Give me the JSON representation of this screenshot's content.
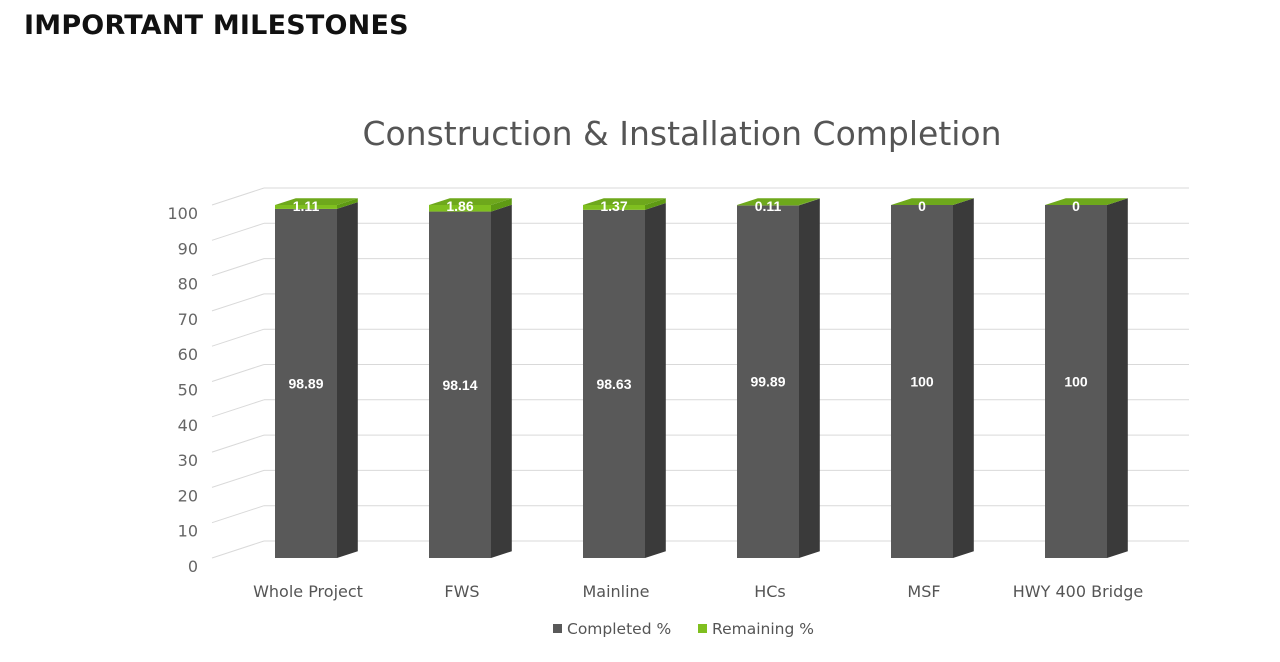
{
  "page": {
    "heading": "IMPORTANT MILESTONES"
  },
  "chart_data": {
    "type": "bar",
    "stacked": true,
    "three_d": true,
    "title": "Construction & Installation Completion",
    "categories": [
      "Whole Project",
      "FWS",
      "Mainline",
      "HCs",
      "MSF",
      "HWY 400 Bridge"
    ],
    "series": [
      {
        "name": "Completed %",
        "values": [
          98.89,
          98.14,
          98.63,
          99.89,
          100,
          100
        ],
        "color": "#595959"
      },
      {
        "name": "Remaining %",
        "values": [
          1.11,
          1.86,
          1.37,
          0.11,
          0,
          0
        ],
        "color": "#7fbf1f"
      }
    ],
    "yticks": [
      0,
      10,
      20,
      30,
      40,
      50,
      60,
      70,
      80,
      90,
      100
    ],
    "ylim": [
      0,
      100
    ],
    "grid": true,
    "legend_position": "bottom",
    "data_labels": true,
    "colors": {
      "completed_side": "#3a3a3a",
      "completed_top": "#6a6a6a",
      "remaining_side": "#5e9a14",
      "remaining_top": "#6ea81c",
      "grid": "#d9d9d9"
    }
  }
}
